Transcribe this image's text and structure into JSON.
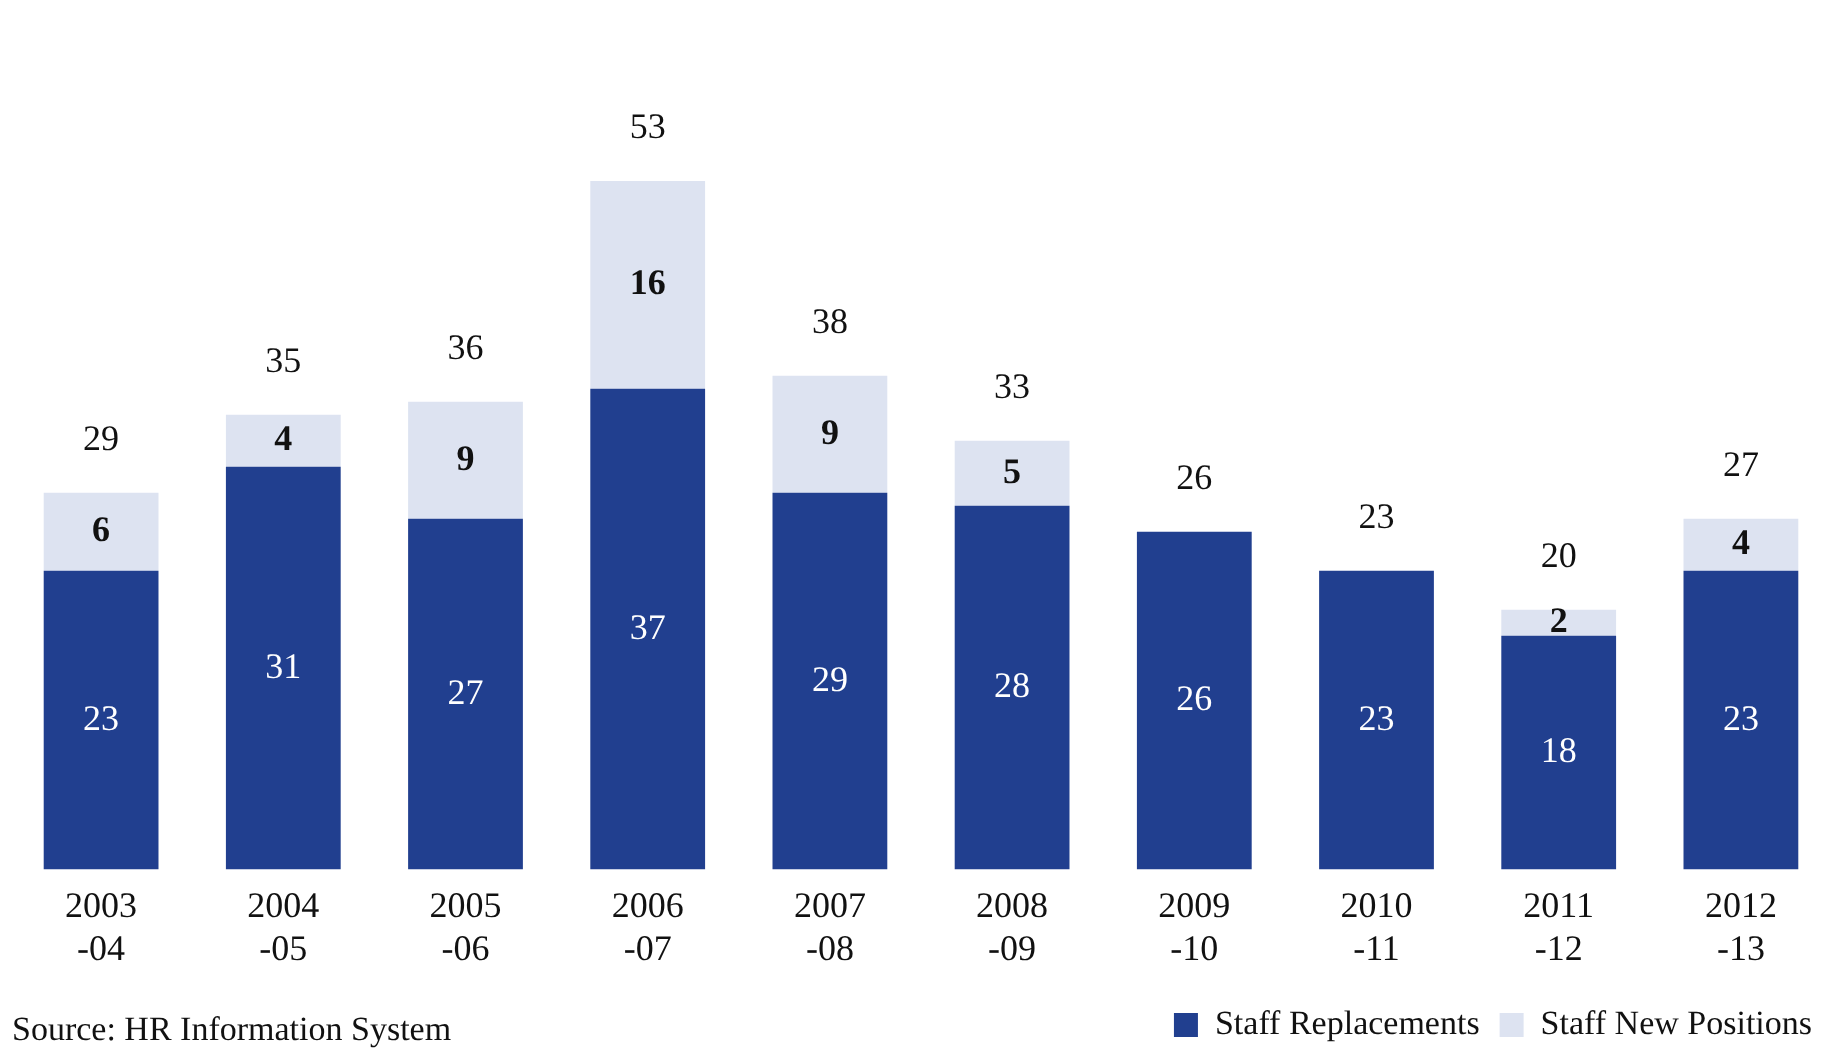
{
  "chart_data": {
    "type": "bar",
    "stacked": true,
    "categories": [
      "2003-04",
      "2004-05",
      "2005-06",
      "2006-07",
      "2007-08",
      "2008-09",
      "2009-10",
      "2010-11",
      "2011-12",
      "2012-13"
    ],
    "series": [
      {
        "name": "Staff Replacements",
        "color": "#213f8f",
        "values": [
          23,
          31,
          27,
          37,
          29,
          28,
          26,
          23,
          18,
          23
        ]
      },
      {
        "name": "Staff New Positions",
        "color": "#dde3f1",
        "values": [
          6,
          4,
          9,
          16,
          9,
          5,
          null,
          null,
          2,
          4
        ]
      }
    ],
    "data_labels": true,
    "totals": [
      "29",
      "35",
      "36",
      "53",
      "38",
      "33",
      "26",
      "23",
      "20",
      "27"
    ],
    "legend": "bottom right",
    "grid": false,
    "annotations": [
      "Source: HR Information System"
    ]
  }
}
